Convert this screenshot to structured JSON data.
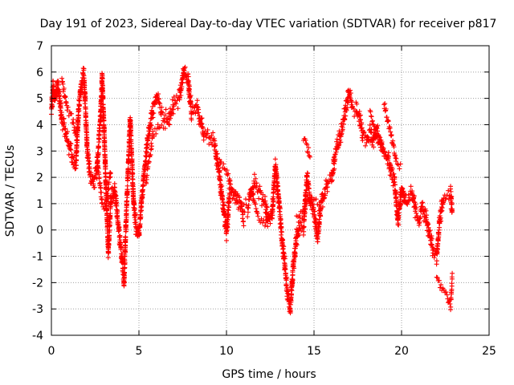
{
  "chart_data": {
    "type": "scatter",
    "title": "Day 191 of 2023, Sidereal Day-to-day VTEC variation (SDTVAR) for receiver p817",
    "xlabel": "GPS time / hours",
    "ylabel": "SDTVAR / TECUs",
    "xlim": [
      0,
      25
    ],
    "ylim": [
      -4,
      7
    ],
    "x_ticks": [
      0,
      5,
      10,
      15,
      20,
      25
    ],
    "y_ticks": [
      -4,
      -3,
      -2,
      -1,
      0,
      1,
      2,
      3,
      4,
      5,
      6,
      7
    ],
    "grid": true,
    "marker": "plus",
    "series": [
      {
        "name": "SDTVAR",
        "color": "#ff0000",
        "keypoints": [
          [
            0.0,
            4.6
          ],
          [
            0.1,
            5.4
          ],
          [
            0.2,
            5.0
          ],
          [
            0.35,
            5.6
          ],
          [
            0.5,
            4.8
          ],
          [
            0.6,
            4.2
          ],
          [
            0.8,
            3.8
          ],
          [
            1.0,
            3.2
          ],
          [
            1.2,
            2.8
          ],
          [
            1.4,
            2.5
          ],
          [
            1.55,
            4.5
          ],
          [
            1.7,
            5.5
          ],
          [
            1.85,
            5.9
          ],
          [
            1.95,
            4.6
          ],
          [
            2.05,
            3.0
          ],
          [
            2.2,
            2.2
          ],
          [
            2.4,
            1.8
          ],
          [
            2.6,
            2.3
          ],
          [
            2.8,
            4.2
          ],
          [
            2.9,
            5.8
          ],
          [
            3.0,
            4.0
          ],
          [
            3.1,
            2.0
          ],
          [
            3.25,
            -0.8
          ],
          [
            3.4,
            1.2
          ],
          [
            3.6,
            1.6
          ],
          [
            3.8,
            0.3
          ],
          [
            4.0,
            -0.9
          ],
          [
            4.15,
            -2.0
          ],
          [
            4.3,
            1.0
          ],
          [
            4.5,
            4.2
          ],
          [
            4.7,
            1.0
          ],
          [
            4.85,
            0.0
          ],
          [
            5.0,
            -0.3
          ],
          [
            5.2,
            1.5
          ],
          [
            5.5,
            3.5
          ],
          [
            5.8,
            4.6
          ],
          [
            6.0,
            5.0
          ],
          [
            6.3,
            4.5
          ],
          [
            6.7,
            4.2
          ],
          [
            7.0,
            4.8
          ],
          [
            7.3,
            5.0
          ],
          [
            7.5,
            5.7
          ],
          [
            7.6,
            6.1
          ],
          [
            7.8,
            5.8
          ],
          [
            8.0,
            4.5
          ],
          [
            8.3,
            4.7
          ],
          [
            8.5,
            4.2
          ],
          [
            8.7,
            3.7
          ],
          [
            9.0,
            3.5
          ],
          [
            9.3,
            3.3
          ],
          [
            9.5,
            2.5
          ],
          [
            9.7,
            1.5
          ],
          [
            9.9,
            0.5
          ],
          [
            10.0,
            -0.1
          ],
          [
            10.2,
            1.6
          ],
          [
            10.5,
            1.3
          ],
          [
            10.8,
            0.9
          ],
          [
            11.2,
            0.8
          ],
          [
            11.6,
            1.8
          ],
          [
            11.9,
            1.4
          ],
          [
            12.2,
            1.0
          ],
          [
            12.4,
            0.3
          ],
          [
            12.6,
            0.5
          ],
          [
            12.8,
            2.5
          ],
          [
            13.0,
            1.0
          ],
          [
            13.2,
            -0.5
          ],
          [
            13.5,
            -2.5
          ],
          [
            13.65,
            -3.0
          ],
          [
            13.8,
            -1.5
          ],
          [
            14.0,
            -0.3
          ],
          [
            14.2,
            0.3
          ],
          [
            14.4,
            0.1
          ],
          [
            14.6,
            2.0
          ],
          [
            14.8,
            1.1
          ],
          [
            15.0,
            0.6
          ],
          [
            15.2,
            -0.3
          ],
          [
            15.4,
            1.0
          ],
          [
            15.6,
            1.4
          ],
          [
            15.8,
            1.8
          ],
          [
            16.0,
            1.9
          ],
          [
            16.2,
            2.8
          ],
          [
            16.5,
            3.6
          ],
          [
            16.8,
            4.5
          ],
          [
            17.0,
            5.2
          ],
          [
            17.2,
            4.7
          ],
          [
            17.4,
            4.6
          ],
          [
            17.6,
            4.2
          ],
          [
            17.8,
            3.6
          ],
          [
            18.0,
            3.4
          ],
          [
            18.2,
            3.7
          ],
          [
            18.4,
            3.3
          ],
          [
            18.6,
            3.8
          ],
          [
            18.8,
            3.4
          ],
          [
            19.0,
            3.0
          ],
          [
            19.2,
            2.8
          ],
          [
            19.4,
            2.2
          ],
          [
            19.6,
            1.8
          ],
          [
            19.8,
            0.3
          ],
          [
            20.0,
            1.6
          ],
          [
            20.2,
            1.0
          ],
          [
            20.4,
            1.2
          ],
          [
            20.6,
            1.4
          ],
          [
            20.8,
            0.7
          ],
          [
            21.0,
            0.4
          ],
          [
            21.2,
            0.8
          ],
          [
            21.4,
            0.4
          ],
          [
            21.6,
            -0.2
          ],
          [
            21.8,
            -0.8
          ],
          [
            22.0,
            -1.0
          ],
          [
            22.2,
            0.5
          ],
          [
            22.4,
            1.2
          ],
          [
            22.6,
            1.3
          ],
          [
            22.8,
            1.4
          ],
          [
            22.9,
            0.6
          ]
        ],
        "secondary_branches": [
          [
            [
              0.6,
              5.7
            ],
            [
              0.9,
              4.6
            ],
            [
              1.2,
              4.2
            ],
            [
              1.5,
              3.3
            ]
          ],
          [
            [
              2.6,
              2.8
            ],
            [
              2.9,
              1.0
            ],
            [
              3.1,
              0.8
            ],
            [
              3.4,
              2.3
            ]
          ],
          [
            [
              5.4,
              1.8
            ],
            [
              5.8,
              3.6
            ],
            [
              6.2,
              4.0
            ],
            [
              6.8,
              3.9
            ]
          ],
          [
            [
              9.6,
              2.6
            ],
            [
              10.0,
              2.2
            ],
            [
              10.4,
              1.4
            ],
            [
              10.8,
              1.1
            ],
            [
              11.0,
              0.2
            ]
          ],
          [
            [
              11.4,
              1.5
            ],
            [
              11.8,
              0.5
            ],
            [
              12.2,
              0.2
            ],
            [
              12.6,
              0.7
            ]
          ],
          [
            [
              14.4,
              3.5
            ],
            [
              14.6,
              3.2
            ],
            [
              14.8,
              2.7
            ]
          ],
          [
            [
              14.0,
              0.6
            ],
            [
              14.4,
              0.8
            ],
            [
              14.8,
              1.3
            ],
            [
              15.2,
              1.1
            ],
            [
              15.6,
              1.0
            ]
          ],
          [
            [
              18.2,
              4.5
            ],
            [
              18.6,
              3.5
            ],
            [
              19.0,
              3.0
            ]
          ],
          [
            [
              19.0,
              4.8
            ],
            [
              19.3,
              3.9
            ],
            [
              19.7,
              2.6
            ],
            [
              20.0,
              2.3
            ]
          ],
          [
            [
              22.0,
              -1.8
            ],
            [
              22.3,
              -2.2
            ],
            [
              22.6,
              -2.5
            ],
            [
              22.8,
              -2.9
            ],
            [
              22.9,
              -1.7
            ]
          ]
        ]
      }
    ]
  }
}
